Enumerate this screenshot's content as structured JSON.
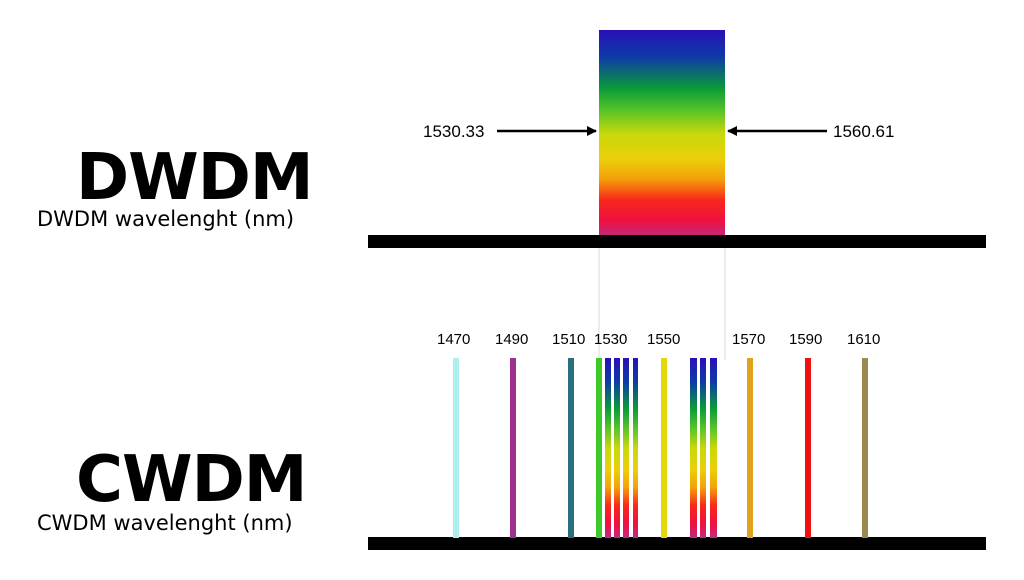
{
  "dwdm": {
    "title": "DWDM",
    "subtitle": "DWDM wavelenght (nm)",
    "range_low": "1530.33",
    "range_high": "1560.61"
  },
  "cwdm": {
    "title": "CWDM",
    "subtitle": "CWDM wavelenght (nm)",
    "ticks": [
      "1470",
      "1490",
      "1510",
      "1530",
      "1550",
      "1570",
      "1590",
      "1610"
    ],
    "channel_colors": {
      "1470": "#aef0f0",
      "1490": "#a03090",
      "1510": "#2a6e80",
      "1530": "#3ec82a",
      "1550": "#e3d90b",
      "1570": "#e2a31c",
      "1590": "#ee1111",
      "1610": "#9a8a50"
    }
  },
  "colors": {
    "spectrum": [
      "#2a10b8",
      "#0d3aa8",
      "#0b9a3a",
      "#4ec12a",
      "#c8d80c",
      "#ead00a",
      "#f4a009",
      "#f8281a",
      "#ee1040",
      "#c02a80"
    ],
    "baseline": "#000000"
  }
}
